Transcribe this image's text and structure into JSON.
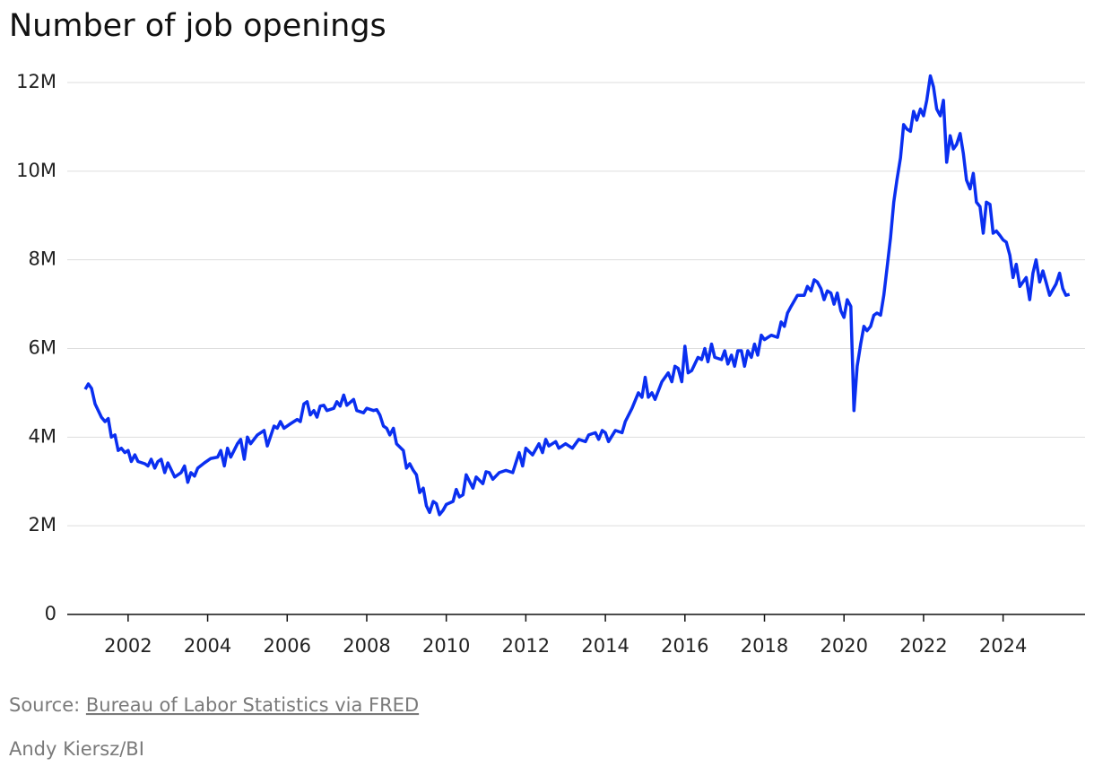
{
  "chart_data": {
    "type": "line",
    "title": "Number of job openings",
    "source_prefix": "Source:",
    "source_link": "Bureau of Labor Statistics via FRED",
    "credit": "Andy Kiersz/BI",
    "xlim": [
      2000.47,
      2026.06
    ],
    "xticks": [
      2002,
      2004,
      2006,
      2008,
      2010,
      2012,
      2014,
      2016,
      2018,
      2020,
      2022,
      2024
    ],
    "ylim": [
      0,
      12
    ],
    "yticks": [
      {
        "value": 0,
        "label": "0"
      },
      {
        "value": 2,
        "label": "2M"
      },
      {
        "value": 4,
        "label": "4M"
      },
      {
        "value": 6,
        "label": "6M"
      },
      {
        "value": 8,
        "label": "8M"
      },
      {
        "value": 10,
        "label": "10M"
      },
      {
        "value": 12,
        "label": "12M"
      }
    ],
    "grid": true,
    "x": [
      2000.92,
      2001.0,
      2001.08,
      2001.17,
      2001.33,
      2001.42,
      2001.5,
      2001.58,
      2001.67,
      2001.75,
      2001.83,
      2001.92,
      2002.0,
      2002.08,
      2002.17,
      2002.25,
      2002.42,
      2002.5,
      2002.58,
      2002.67,
      2002.75,
      2002.83,
      2002.92,
      2003.0,
      2003.17,
      2003.33,
      2003.42,
      2003.5,
      2003.58,
      2003.67,
      2003.75,
      2003.92,
      2004.08,
      2004.25,
      2004.33,
      2004.42,
      2004.5,
      2004.58,
      2004.75,
      2004.83,
      2004.92,
      2005.0,
      2005.08,
      2005.25,
      2005.42,
      2005.5,
      2005.67,
      2005.75,
      2005.83,
      2005.92,
      2006.08,
      2006.25,
      2006.33,
      2006.42,
      2006.5,
      2006.58,
      2006.67,
      2006.75,
      2006.83,
      2006.92,
      2007.0,
      2007.17,
      2007.25,
      2007.33,
      2007.42,
      2007.5,
      2007.67,
      2007.75,
      2007.92,
      2008.0,
      2008.17,
      2008.25,
      2008.33,
      2008.42,
      2008.5,
      2008.58,
      2008.67,
      2008.75,
      2008.92,
      2009.0,
      2009.08,
      2009.17,
      2009.25,
      2009.33,
      2009.42,
      2009.5,
      2009.58,
      2009.67,
      2009.75,
      2009.83,
      2009.92,
      2010.0,
      2010.17,
      2010.25,
      2010.33,
      2010.42,
      2010.5,
      2010.67,
      2010.75,
      2010.92,
      2011.0,
      2011.08,
      2011.17,
      2011.33,
      2011.5,
      2011.67,
      2011.83,
      2011.92,
      2012.0,
      2012.17,
      2012.33,
      2012.42,
      2012.5,
      2012.58,
      2012.75,
      2012.83,
      2013.0,
      2013.17,
      2013.33,
      2013.5,
      2013.58,
      2013.75,
      2013.83,
      2013.92,
      2014.0,
      2014.08,
      2014.25,
      2014.42,
      2014.5,
      2014.67,
      2014.83,
      2014.92,
      2015.0,
      2015.08,
      2015.17,
      2015.25,
      2015.42,
      2015.58,
      2015.67,
      2015.75,
      2015.83,
      2015.92,
      2016.0,
      2016.08,
      2016.17,
      2016.33,
      2016.42,
      2016.5,
      2016.58,
      2016.67,
      2016.75,
      2016.92,
      2017.0,
      2017.08,
      2017.17,
      2017.25,
      2017.33,
      2017.42,
      2017.5,
      2017.58,
      2017.67,
      2017.75,
      2017.83,
      2017.92,
      2018.0,
      2018.17,
      2018.33,
      2018.42,
      2018.5,
      2018.58,
      2018.67,
      2018.83,
      2019.0,
      2019.08,
      2019.17,
      2019.25,
      2019.33,
      2019.42,
      2019.5,
      2019.58,
      2019.67,
      2019.75,
      2019.83,
      2019.92,
      2020.0,
      2020.08,
      2020.17,
      2020.25,
      2020.33,
      2020.42,
      2020.5,
      2020.58,
      2020.67,
      2020.75,
      2020.83,
      2020.92,
      2021.0,
      2021.08,
      2021.17,
      2021.25,
      2021.33,
      2021.42,
      2021.5,
      2021.58,
      2021.67,
      2021.75,
      2021.83,
      2021.92,
      2022.0,
      2022.08,
      2022.17,
      2022.25,
      2022.33,
      2022.42,
      2022.5,
      2022.58,
      2022.67,
      2022.75,
      2022.83,
      2022.92,
      2023.0,
      2023.08,
      2023.17,
      2023.25,
      2023.33,
      2023.42,
      2023.5,
      2023.58,
      2023.67,
      2023.75,
      2023.83,
      2023.92,
      2024.0,
      2024.08,
      2024.17,
      2024.25,
      2024.33,
      2024.42,
      2024.5,
      2024.58,
      2024.67,
      2024.75,
      2024.83,
      2024.92,
      2025.0,
      2025.08,
      2025.17,
      2025.33,
      2025.42,
      2025.5,
      2025.58,
      2025.67
    ],
    "series": [
      {
        "name": "Job openings",
        "color": "#0a2ff0",
        "values": [
          5.08,
          5.2,
          5.1,
          4.75,
          4.45,
          4.35,
          4.42,
          4.0,
          4.05,
          3.7,
          3.75,
          3.65,
          3.7,
          3.45,
          3.6,
          3.45,
          3.4,
          3.35,
          3.5,
          3.3,
          3.45,
          3.5,
          3.2,
          3.42,
          3.1,
          3.2,
          3.35,
          2.98,
          3.2,
          3.12,
          3.3,
          3.42,
          3.52,
          3.55,
          3.7,
          3.35,
          3.75,
          3.55,
          3.85,
          3.95,
          3.5,
          4.0,
          3.85,
          4.05,
          4.15,
          3.8,
          4.25,
          4.2,
          4.35,
          4.2,
          4.3,
          4.4,
          4.35,
          4.75,
          4.8,
          4.5,
          4.6,
          4.45,
          4.7,
          4.72,
          4.6,
          4.65,
          4.8,
          4.7,
          4.95,
          4.72,
          4.85,
          4.6,
          4.55,
          4.65,
          4.6,
          4.62,
          4.5,
          4.25,
          4.2,
          4.05,
          4.2,
          3.85,
          3.7,
          3.3,
          3.4,
          3.25,
          3.15,
          2.75,
          2.85,
          2.45,
          2.3,
          2.55,
          2.5,
          2.25,
          2.35,
          2.48,
          2.55,
          2.82,
          2.65,
          2.7,
          3.15,
          2.85,
          3.1,
          2.95,
          3.22,
          3.2,
          3.05,
          3.2,
          3.25,
          3.2,
          3.65,
          3.35,
          3.75,
          3.6,
          3.85,
          3.65,
          3.95,
          3.8,
          3.9,
          3.75,
          3.85,
          3.75,
          3.95,
          3.9,
          4.05,
          4.1,
          3.95,
          4.15,
          4.1,
          3.9,
          4.15,
          4.1,
          4.35,
          4.65,
          5.0,
          4.9,
          5.35,
          4.9,
          5.0,
          4.85,
          5.25,
          5.45,
          5.25,
          5.6,
          5.55,
          5.25,
          6.05,
          5.45,
          5.5,
          5.8,
          5.75,
          6.0,
          5.7,
          6.1,
          5.8,
          5.75,
          5.95,
          5.65,
          5.85,
          5.6,
          5.95,
          5.95,
          5.6,
          5.95,
          5.8,
          6.1,
          5.85,
          6.3,
          6.2,
          6.3,
          6.25,
          6.6,
          6.5,
          6.8,
          6.95,
          7.2,
          7.2,
          7.4,
          7.3,
          7.55,
          7.5,
          7.35,
          7.1,
          7.3,
          7.25,
          7.0,
          7.25,
          6.85,
          6.7,
          7.1,
          6.95,
          4.6,
          5.6,
          6.1,
          6.5,
          6.4,
          6.5,
          6.75,
          6.8,
          6.75,
          7.2,
          7.8,
          8.5,
          9.3,
          9.8,
          10.3,
          11.05,
          10.95,
          10.9,
          11.35,
          11.15,
          11.4,
          11.25,
          11.6,
          12.15,
          11.9,
          11.4,
          11.25,
          11.6,
          10.2,
          10.8,
          10.5,
          10.6,
          10.85,
          10.4,
          9.8,
          9.6,
          9.95,
          9.3,
          9.2,
          8.6,
          9.3,
          9.25,
          8.6,
          8.65,
          8.55,
          8.45,
          8.4,
          8.1,
          7.6,
          7.9,
          7.4,
          7.5,
          7.6,
          7.1,
          7.7,
          8.0,
          7.5,
          7.75,
          7.5,
          7.2,
          7.45,
          7.7,
          7.35,
          7.2,
          7.22
        ]
      }
    ]
  }
}
